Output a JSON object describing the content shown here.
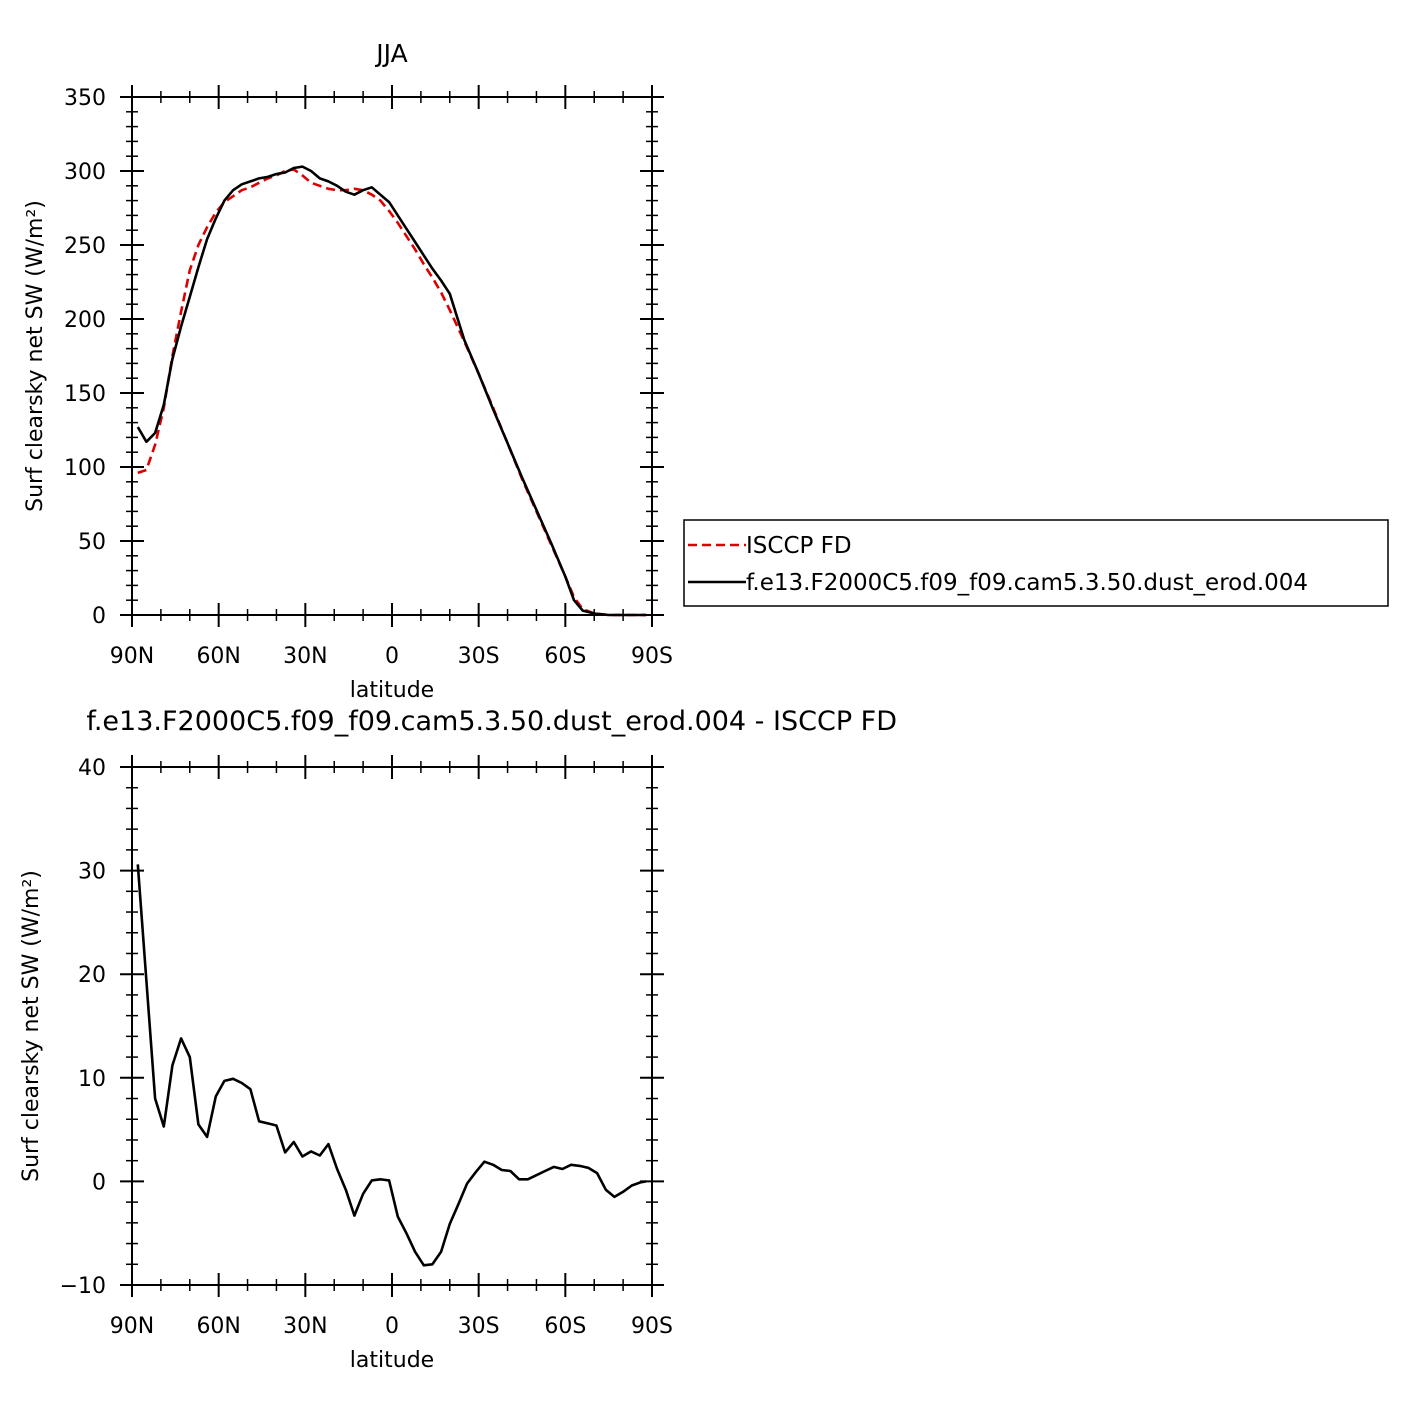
{
  "chart_data": [
    {
      "type": "line",
      "title": "JJA",
      "xlabel": "latitude",
      "ylabel": "Surf clearsky net SW (W/m²)",
      "xlim": [
        90,
        -90
      ],
      "ylim": [
        0,
        350
      ],
      "yticks": [
        0,
        50,
        100,
        150,
        200,
        250,
        300,
        350
      ],
      "xticks": [
        {
          "value": 90,
          "label": "90N"
        },
        {
          "value": 60,
          "label": "60N"
        },
        {
          "value": 30,
          "label": "30N"
        },
        {
          "value": 0,
          "label": "0"
        },
        {
          "value": -30,
          "label": "30S"
        },
        {
          "value": -60,
          "label": "60S"
        },
        {
          "value": -90,
          "label": "90S"
        }
      ],
      "legend_position": "right",
      "series": [
        {
          "name": "ISCCP FD",
          "color": "#dd0000",
          "dash": "dashed",
          "x": [
            88,
            85,
            82,
            79,
            76,
            73,
            70,
            67,
            64,
            61,
            58,
            55,
            52,
            49,
            46,
            43,
            40,
            37,
            34,
            31,
            28,
            25,
            22,
            19,
            16,
            13,
            10,
            7,
            4,
            1,
            -2,
            -5,
            -8,
            -11,
            -14,
            -17,
            -20,
            -25,
            -30,
            -35,
            -40,
            -45,
            -50,
            -55,
            -60,
            -63,
            -66,
            -70,
            -75,
            -80,
            -85,
            -88
          ],
          "y": [
            96,
            98,
            115,
            140,
            175,
            205,
            233,
            250,
            262,
            272,
            279,
            283,
            287,
            289,
            292,
            295,
            297,
            300,
            301,
            297,
            292,
            290,
            288,
            287,
            287,
            288,
            287,
            284,
            280,
            273,
            265,
            256,
            247,
            237,
            228,
            218,
            206,
            185,
            163,
            140,
            116,
            92,
            70,
            48,
            26,
            12,
            4,
            1,
            0,
            0,
            0,
            0
          ]
        },
        {
          "name": "f.e13.F2000C5.f09_f09.cam5.3.50.dust_erod.004",
          "color": "#000000",
          "dash": "solid",
          "x": [
            88,
            85,
            82,
            79,
            76,
            73,
            70,
            67,
            64,
            61,
            58,
            55,
            52,
            49,
            46,
            43,
            40,
            37,
            34,
            31,
            28,
            25,
            22,
            19,
            16,
            13,
            10,
            7,
            4,
            1,
            -2,
            -5,
            -8,
            -11,
            -14,
            -17,
            -20,
            -25,
            -30,
            -35,
            -40,
            -45,
            -50,
            -55,
            -60,
            -63,
            -66,
            -70,
            -75,
            -80,
            -85,
            -88
          ],
          "y": [
            127,
            117,
            123,
            142,
            173,
            195,
            215,
            235,
            254,
            268,
            280,
            287,
            291,
            293,
            295,
            296,
            298,
            299,
            302,
            303,
            300,
            295,
            293,
            290,
            286,
            284,
            287,
            289,
            284,
            279,
            270,
            261,
            252,
            243,
            234,
            226,
            217,
            186,
            163,
            139,
            116,
            93,
            71,
            49,
            26,
            10,
            3,
            1,
            0,
            0,
            0,
            0
          ]
        }
      ]
    },
    {
      "type": "line",
      "title": "f.e13.F2000C5.f09_f09.cam5.3.50.dust_erod.004 - ISCCP FD",
      "xlabel": "latitude",
      "ylabel": "Surf clearsky net SW (W/m²)",
      "xlim": [
        90,
        -90
      ],
      "ylim": [
        -10,
        40
      ],
      "yticks": [
        -10,
        0,
        10,
        20,
        30,
        40
      ],
      "xticks": [
        {
          "value": 90,
          "label": "90N"
        },
        {
          "value": 60,
          "label": "60N"
        },
        {
          "value": 30,
          "label": "30N"
        },
        {
          "value": 0,
          "label": "0"
        },
        {
          "value": -30,
          "label": "30S"
        },
        {
          "value": -60,
          "label": "60S"
        },
        {
          "value": -90,
          "label": "90S"
        }
      ],
      "series": [
        {
          "color": "#000000",
          "dash": "solid",
          "x": [
            88,
            82,
            79,
            76,
            73,
            70,
            67,
            64,
            61,
            58,
            55,
            52,
            49,
            46,
            43,
            40,
            37,
            34,
            31,
            28,
            25,
            22,
            19,
            16,
            13,
            10,
            7,
            4,
            1,
            -2,
            -5,
            -8,
            -11,
            -14,
            -17,
            -20,
            -23,
            -26,
            -29,
            -32,
            -35,
            -38,
            -41,
            -44,
            -47,
            -50,
            -53,
            -56,
            -59,
            -62,
            -65,
            -68,
            -71,
            -74,
            -77,
            -80,
            -83,
            -86,
            -88
          ],
          "y": [
            30.6,
            8.0,
            5.3,
            11.2,
            13.8,
            12.0,
            5.5,
            4.3,
            8.2,
            9.7,
            9.9,
            9.5,
            8.9,
            5.8,
            5.6,
            5.4,
            2.8,
            3.8,
            2.4,
            2.9,
            2.5,
            3.6,
            1.2,
            -0.8,
            -3.3,
            -1.2,
            0.1,
            0.2,
            0.1,
            -3.4,
            -5.0,
            -6.8,
            -8.1,
            -8.0,
            -6.8,
            -4.1,
            -2.2,
            -0.2,
            0.9,
            1.9,
            1.6,
            1.1,
            1.0,
            0.2,
            0.2,
            0.6,
            1.0,
            1.4,
            1.2,
            1.6,
            1.5,
            1.3,
            0.8,
            -0.8,
            -1.5,
            -1.0,
            -0.4,
            -0.1,
            0.0
          ]
        }
      ]
    }
  ]
}
